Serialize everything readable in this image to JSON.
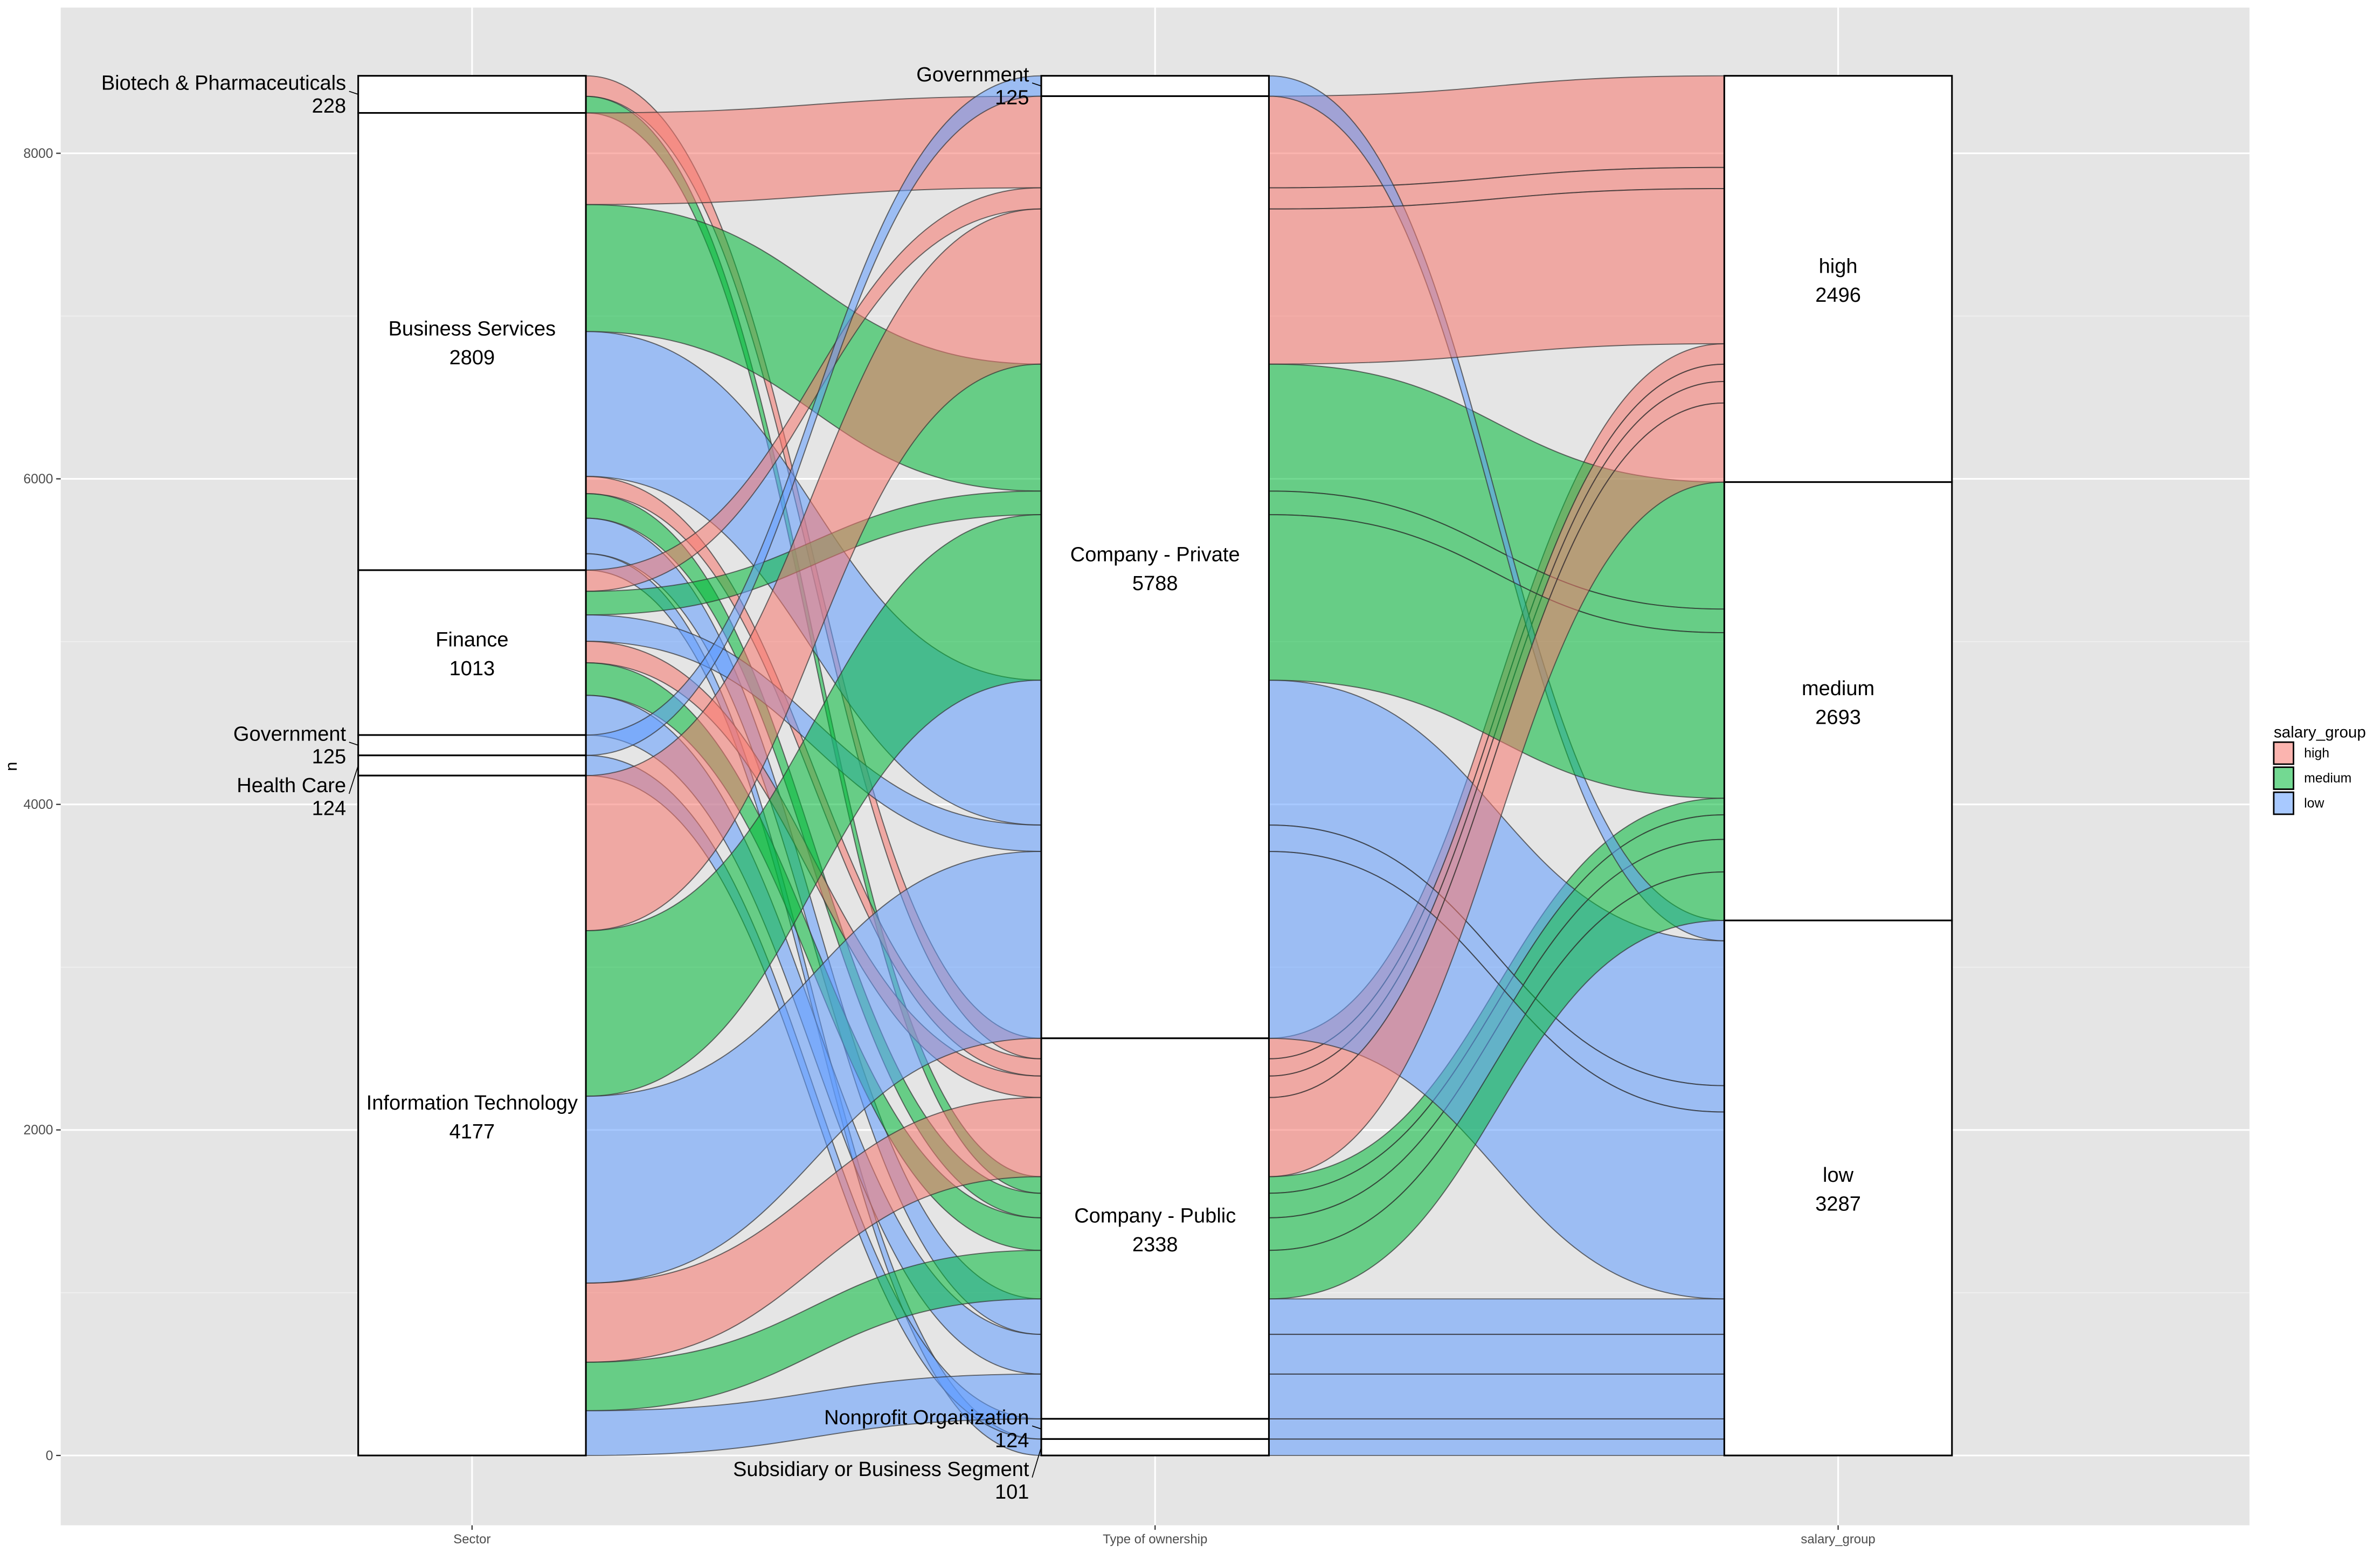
{
  "chart_data": {
    "type": "alluvial",
    "ylabel": "n",
    "ylim": [
      0,
      8476
    ],
    "yticks": [
      0,
      2000,
      4000,
      6000,
      8000
    ],
    "grid": true,
    "legend_position": "right",
    "axes": [
      "Sector",
      "Type of ownership",
      "salary_group"
    ],
    "strata": [
      [
        {
          "label": "Biotech & Pharmaceuticals",
          "n": 228
        },
        {
          "label": "Business Services",
          "n": 2809
        },
        {
          "label": "Finance",
          "n": 1013
        },
        {
          "label": "Government",
          "n": 125
        },
        {
          "label": "Health Care",
          "n": 124
        },
        {
          "label": "Information Technology",
          "n": 4177
        }
      ],
      [
        {
          "label": "Government",
          "n": 125
        },
        {
          "label": "Company - Private",
          "n": 5788
        },
        {
          "label": "Company - Public",
          "n": 2338
        },
        {
          "label": "Nonprofit Organization",
          "n": 124
        },
        {
          "label": "Subsidiary or Business Segment",
          "n": 101
        }
      ],
      [
        {
          "label": "high",
          "n": 2496
        },
        {
          "label": "medium",
          "n": 2693
        },
        {
          "label": "low",
          "n": 3287
        }
      ]
    ],
    "flows": [
      {
        "sector": "Biotech & Pharmaceuticals",
        "ownership": "Company - Public",
        "salary": "high",
        "n": 126
      },
      {
        "sector": "Biotech & Pharmaceuticals",
        "ownership": "Company - Public",
        "salary": "medium",
        "n": 102
      },
      {
        "sector": "Business Services",
        "ownership": "Company - Private",
        "salary": "high",
        "n": 563
      },
      {
        "sector": "Business Services",
        "ownership": "Company - Private",
        "salary": "medium",
        "n": 780
      },
      {
        "sector": "Business Services",
        "ownership": "Company - Private",
        "salary": "low",
        "n": 890
      },
      {
        "sector": "Business Services",
        "ownership": "Company - Public",
        "salary": "high",
        "n": 106
      },
      {
        "sector": "Business Services",
        "ownership": "Company - Public",
        "salary": "medium",
        "n": 151
      },
      {
        "sector": "Business Services",
        "ownership": "Company - Public",
        "salary": "low",
        "n": 218
      },
      {
        "sector": "Business Services",
        "ownership": "Subsidiary or Business Segment",
        "salary": "low",
        "n": 101
      },
      {
        "sector": "Finance",
        "ownership": "Company - Private",
        "salary": "high",
        "n": 130
      },
      {
        "sector": "Finance",
        "ownership": "Company - Private",
        "salary": "medium",
        "n": 145
      },
      {
        "sector": "Finance",
        "ownership": "Company - Private",
        "salary": "low",
        "n": 162
      },
      {
        "sector": "Finance",
        "ownership": "Company - Public",
        "salary": "high",
        "n": 132
      },
      {
        "sector": "Finance",
        "ownership": "Company - Public",
        "salary": "medium",
        "n": 200
      },
      {
        "sector": "Finance",
        "ownership": "Company - Public",
        "salary": "low",
        "n": 244
      },
      {
        "sector": "Government",
        "ownership": "Government",
        "salary": "low",
        "n": 125
      },
      {
        "sector": "Health Care",
        "ownership": "Nonprofit Organization",
        "salary": "low",
        "n": 124
      },
      {
        "sector": "Information Technology",
        "ownership": "Company - Private",
        "salary": "high",
        "n": 953
      },
      {
        "sector": "Information Technology",
        "ownership": "Company - Private",
        "salary": "medium",
        "n": 1017
      },
      {
        "sector": "Information Technology",
        "ownership": "Company - Private",
        "salary": "low",
        "n": 1148
      },
      {
        "sector": "Information Technology",
        "ownership": "Company - Public",
        "salary": "high",
        "n": 486
      },
      {
        "sector": "Information Technology",
        "ownership": "Company - Public",
        "salary": "medium",
        "n": 298
      },
      {
        "sector": "Information Technology",
        "ownership": "Company - Public",
        "salary": "low",
        "n": 275
      }
    ],
    "legend": {
      "title": "salary_group",
      "entries": [
        {
          "label": "high",
          "color": "#F8766D"
        },
        {
          "label": "medium",
          "color": "#00BA38"
        },
        {
          "label": "low",
          "color": "#619CFF"
        }
      ]
    }
  }
}
